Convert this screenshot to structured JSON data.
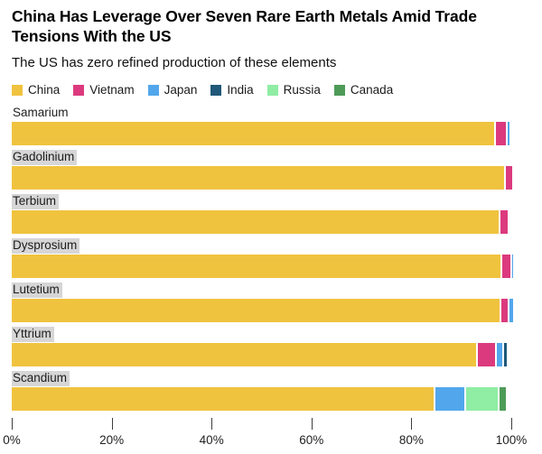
{
  "header": {
    "title": "China Has Leverage Over Seven Rare Earth Metals Amid Trade Tensions With the US",
    "subtitle": "The US has zero refined production of these elements"
  },
  "chart_data": {
    "type": "bar",
    "orientation": "horizontal-stacked",
    "unit": "percent",
    "xlabel": "",
    "ylabel": "",
    "xlim": [
      0,
      100
    ],
    "grid": false,
    "legend_position": "top",
    "categories": [
      {
        "label": "Samarium",
        "highlighted": false
      },
      {
        "label": "Gadolinium",
        "highlighted": true
      },
      {
        "label": "Terbium",
        "highlighted": true
      },
      {
        "label": "Dysprosium",
        "highlighted": true
      },
      {
        "label": "Lutetium",
        "highlighted": true
      },
      {
        "label": "Yttrium",
        "highlighted": true
      },
      {
        "label": "Scandium",
        "highlighted": true
      }
    ],
    "series": [
      {
        "name": "China",
        "color": "#F0C33F",
        "values": [
          96.5,
          98.6,
          97.5,
          97.9,
          97.7,
          92.9,
          84.5
        ]
      },
      {
        "name": "Vietnam",
        "color": "#DC3A7E",
        "values": [
          2.0,
          1.2,
          1.4,
          1.5,
          1.2,
          3.4,
          0
        ]
      },
      {
        "name": "Japan",
        "color": "#52A7EC",
        "values": [
          0.4,
          0,
          0,
          0.3,
          0.8,
          1.2,
          5.8
        ]
      },
      {
        "name": "India",
        "color": "#1F5878",
        "values": [
          0,
          0,
          0,
          0,
          0,
          0.5,
          0
        ]
      },
      {
        "name": "Russia",
        "color": "#8FEDA4",
        "values": [
          0,
          0,
          0,
          0,
          0,
          0,
          6.3
        ]
      },
      {
        "name": "Canada",
        "color": "#4E9B58",
        "values": [
          0,
          0,
          0,
          0,
          0,
          0,
          1.2
        ]
      }
    ],
    "x_ticks": [
      {
        "label": "0%",
        "value": 0
      },
      {
        "label": "20%",
        "value": 20
      },
      {
        "label": "40%",
        "value": 40
      },
      {
        "label": "60%",
        "value": 60
      },
      {
        "label": "80%",
        "value": 80
      },
      {
        "label": "100%",
        "value": 100
      }
    ]
  }
}
